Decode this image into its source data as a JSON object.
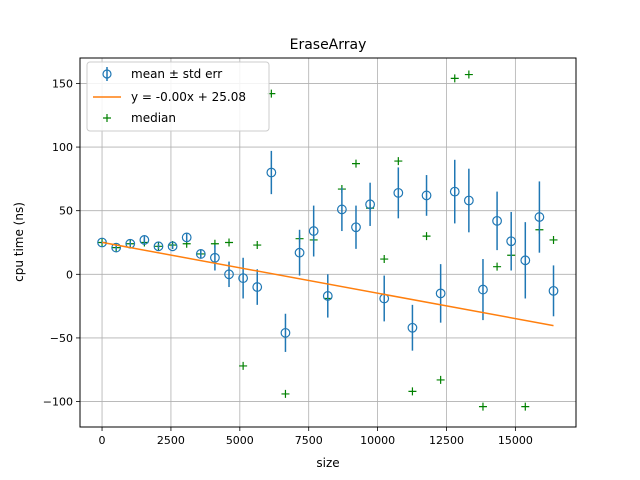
{
  "chart_data": {
    "type": "scatter",
    "title": "EraseArray",
    "xlabel": "size",
    "ylabel": "cpu time (ns)",
    "xlim": [
      -800,
      17200
    ],
    "ylim": [
      -120,
      170
    ],
    "xticks": [
      0,
      2500,
      5000,
      7500,
      10000,
      12500,
      15000
    ],
    "xtick_labels": [
      "0",
      "2500",
      "5000",
      "7500",
      "10000",
      "12500",
      "15000"
    ],
    "yticks": [
      -100,
      -50,
      0,
      50,
      100,
      150
    ],
    "ytick_labels": [
      "−100",
      "−50",
      "0",
      "50",
      "100",
      "150"
    ],
    "grid": true,
    "legend_position": "upper-left",
    "colors": {
      "mean": "#1f77b4",
      "fit": "#ff7f0e",
      "median": "#008000"
    },
    "series": [
      {
        "name": "mean ± std err",
        "kind": "errorbar",
        "points": [
          {
            "x": 0,
            "y": 25,
            "err": 1
          },
          {
            "x": 512,
            "y": 21,
            "err": 2
          },
          {
            "x": 1024,
            "y": 24,
            "err": 2
          },
          {
            "x": 1536,
            "y": 27,
            "err": 3
          },
          {
            "x": 2048,
            "y": 22,
            "err": 2
          },
          {
            "x": 2560,
            "y": 22,
            "err": 2
          },
          {
            "x": 3072,
            "y": 29,
            "err": 3
          },
          {
            "x": 3584,
            "y": 16,
            "err": 3
          },
          {
            "x": 4096,
            "y": 13,
            "err": 10
          },
          {
            "x": 4608,
            "y": 0,
            "err": 10
          },
          {
            "x": 5120,
            "y": -3,
            "err": 16
          },
          {
            "x": 5632,
            "y": -10,
            "err": 14
          },
          {
            "x": 6144,
            "y": 80,
            "err": 17
          },
          {
            "x": 6656,
            "y": -46,
            "err": 15
          },
          {
            "x": 7168,
            "y": 17,
            "err": 18
          },
          {
            "x": 7680,
            "y": 34,
            "err": 20
          },
          {
            "x": 8192,
            "y": -17,
            "err": 17
          },
          {
            "x": 8704,
            "y": 51,
            "err": 17
          },
          {
            "x": 9216,
            "y": 37,
            "err": 17
          },
          {
            "x": 9728,
            "y": 55,
            "err": 17
          },
          {
            "x": 10240,
            "y": -19,
            "err": 18
          },
          {
            "x": 10752,
            "y": 64,
            "err": 20
          },
          {
            "x": 11264,
            "y": -42,
            "err": 18
          },
          {
            "x": 11776,
            "y": 62,
            "err": 16
          },
          {
            "x": 12288,
            "y": -15,
            "err": 23
          },
          {
            "x": 12800,
            "y": 65,
            "err": 25
          },
          {
            "x": 13312,
            "y": 58,
            "err": 25
          },
          {
            "x": 13824,
            "y": -12,
            "err": 24
          },
          {
            "x": 14336,
            "y": 42,
            "err": 23
          },
          {
            "x": 14848,
            "y": 26,
            "err": 23
          },
          {
            "x": 15360,
            "y": 11,
            "err": 30
          },
          {
            "x": 15872,
            "y": 45,
            "err": 28
          },
          {
            "x": 16384,
            "y": -13,
            "err": 20
          }
        ]
      },
      {
        "name": "y = -0.00x + 25.08",
        "kind": "line",
        "x": [
          0,
          16384
        ],
        "y": [
          25.08,
          -40.3
        ]
      },
      {
        "name": "median",
        "kind": "marker",
        "x": [
          0,
          512,
          1024,
          1536,
          2048,
          2560,
          3072,
          3584,
          4096,
          4608,
          5120,
          5632,
          6144,
          6656,
          7168,
          7680,
          8192,
          8704,
          9216,
          9728,
          10240,
          10752,
          11264,
          11776,
          12288,
          12800,
          13312,
          13824,
          14336,
          14848,
          15360,
          15872,
          16384
        ],
        "y": [
          25,
          21,
          24,
          25,
          22,
          23,
          24,
          16,
          24,
          25,
          -72,
          23,
          142,
          -94,
          28,
          27,
          -19,
          67,
          87,
          52,
          12,
          89,
          -92,
          30,
          -83,
          154,
          157,
          -104,
          6,
          15,
          -104,
          35,
          27
        ]
      }
    ]
  }
}
